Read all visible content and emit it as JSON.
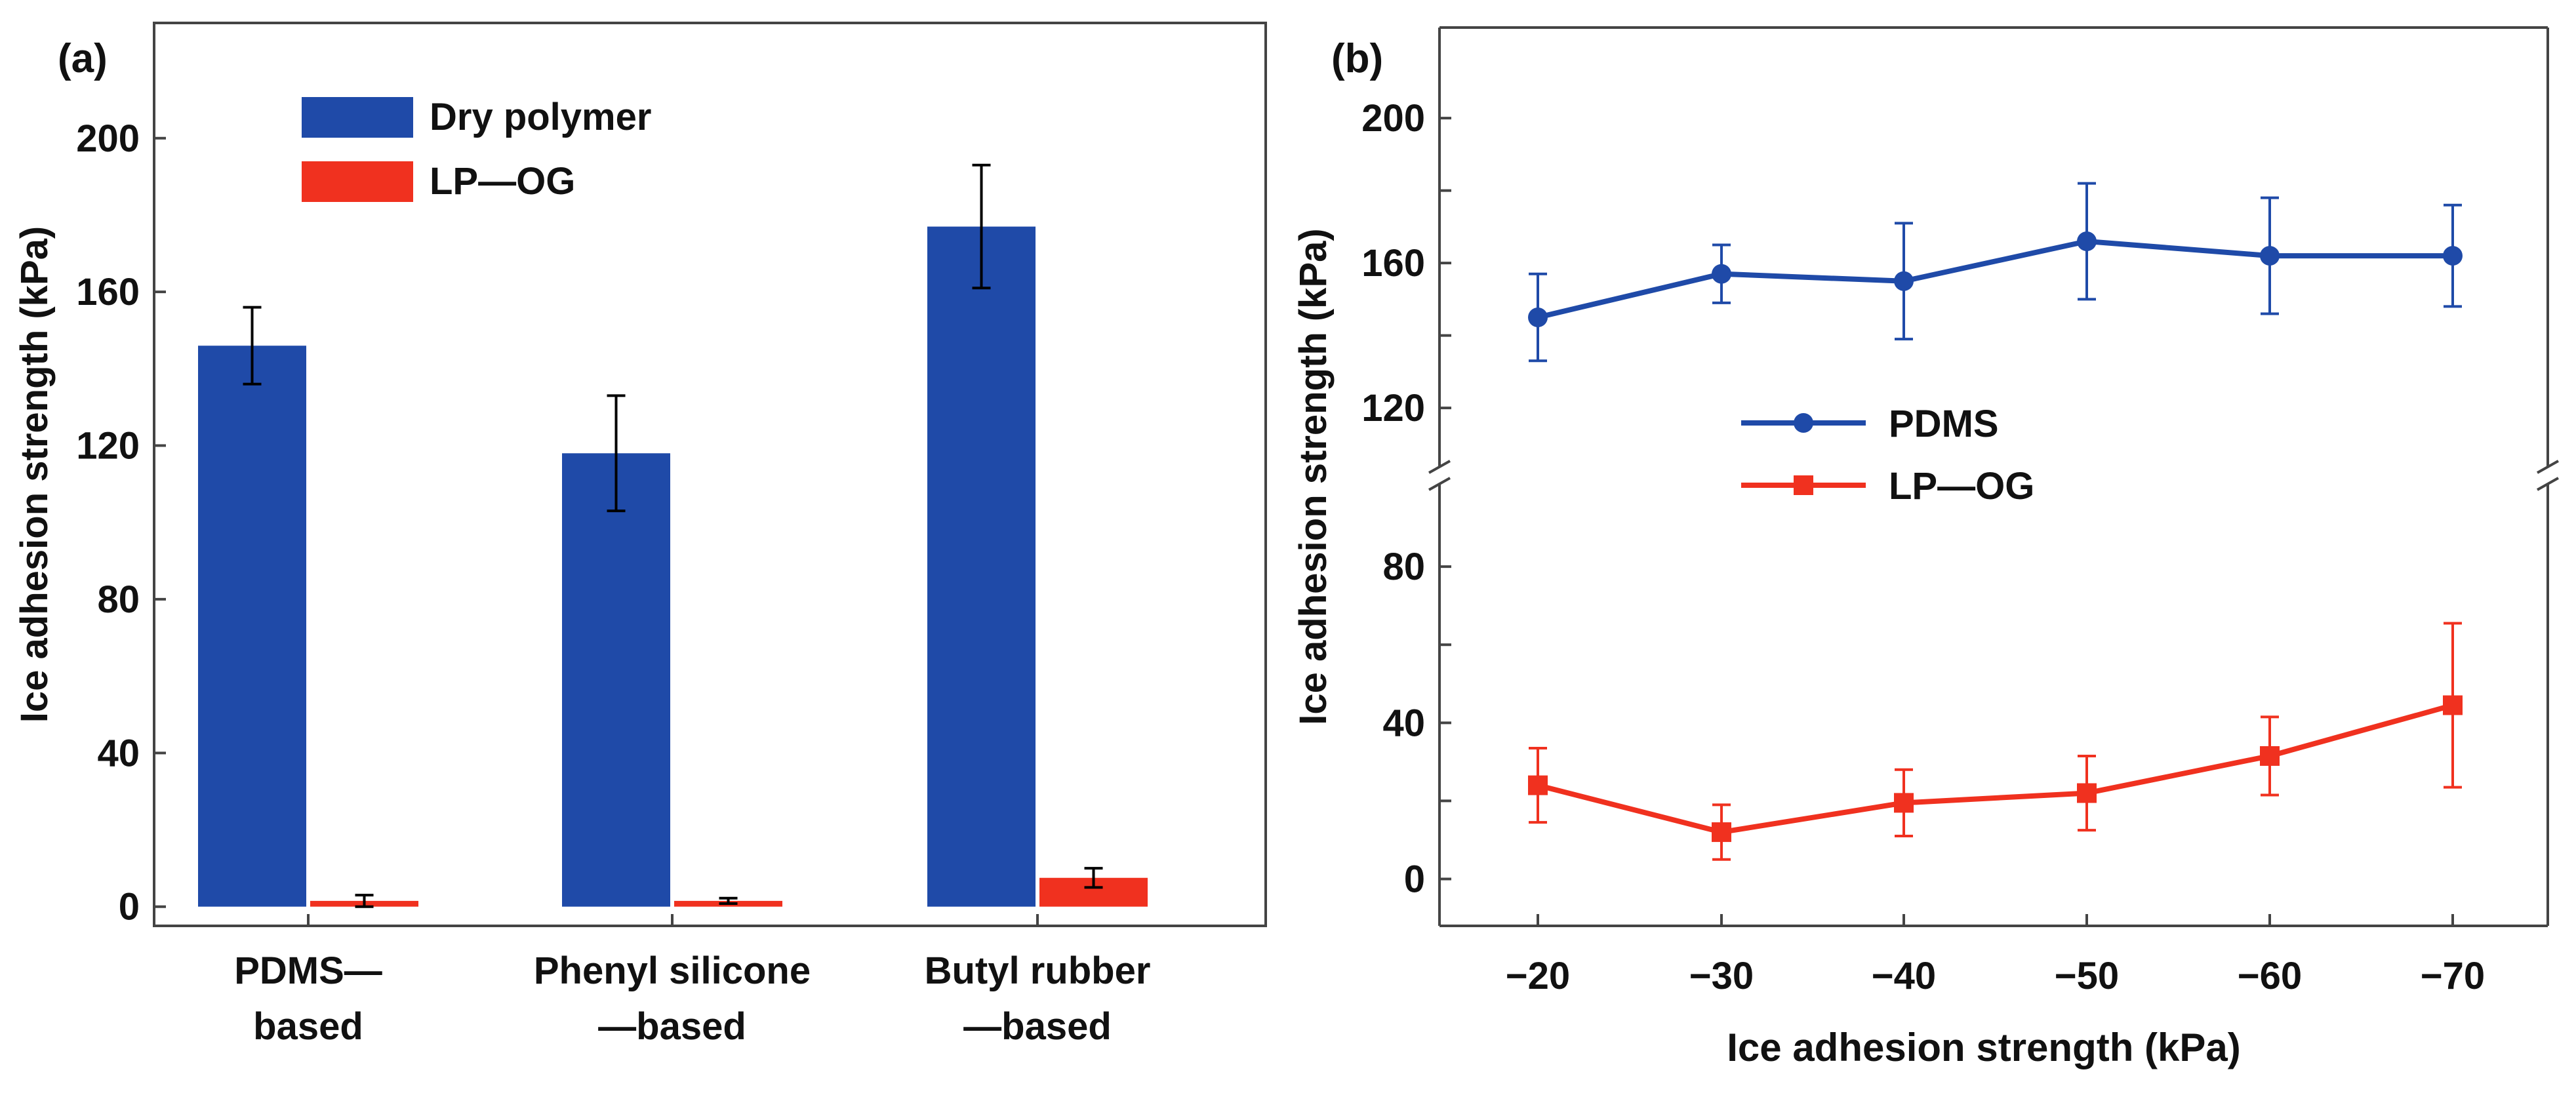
{
  "colors": {
    "blue": "#1f4aa8",
    "red": "#f0311f",
    "axis": "#444444"
  },
  "chart_data": [
    {
      "panel_label": "(a)",
      "type": "bar",
      "ylabel": "Ice adhesion strength (kPa)",
      "ylim": [
        -5,
        230
      ],
      "yticks": [
        0,
        40,
        80,
        120,
        160,
        200
      ],
      "categories": [
        {
          "line1": "PDMS—",
          "line2": "based"
        },
        {
          "line1": "Phenyl silicone",
          "line2": "—based"
        },
        {
          "line1": "Butyl rubber",
          "line2": "—based"
        }
      ],
      "series": [
        {
          "name": "Dry polymer",
          "color": "#1f4aa8",
          "values": [
            146,
            118,
            177
          ],
          "errors": [
            10,
            15,
            16
          ]
        },
        {
          "name": "LP—OG",
          "color": "#f0311f",
          "values": [
            1.5,
            1.5,
            7.5
          ],
          "errors": [
            1.5,
            0.7,
            2.5
          ]
        }
      ],
      "legend_position": "top-left"
    },
    {
      "panel_label": "(b)",
      "type": "line",
      "ylabel": "Ice adhesion strength (kPa)",
      "xlabel": "Ice adhesion strength (kPa)",
      "x": [
        "−20",
        "−30",
        "−40",
        "−50",
        "−60",
        "−70"
      ],
      "y_axis_break": [
        100,
        105
      ],
      "ylim_lower": [
        -12,
        100
      ],
      "ylim_upper": [
        105,
        225
      ],
      "yticks_labeled": [
        0,
        40,
        80,
        120,
        160,
        200
      ],
      "yticks_minor": [
        20,
        60,
        140,
        180
      ],
      "series": [
        {
          "name": "PDMS",
          "marker": "circle",
          "color": "#1f4aa8",
          "values": [
            145,
            157,
            155,
            166,
            162,
            162
          ],
          "errors": [
            12,
            8,
            16,
            16,
            16,
            14
          ]
        },
        {
          "name": "LP—OG",
          "marker": "square",
          "color": "#f0311f",
          "values": [
            24,
            12,
            19.5,
            22,
            31.5,
            44.5
          ],
          "errors": [
            9.5,
            7,
            8.5,
            9.5,
            10,
            21
          ]
        }
      ],
      "legend_position": "center-left"
    }
  ]
}
